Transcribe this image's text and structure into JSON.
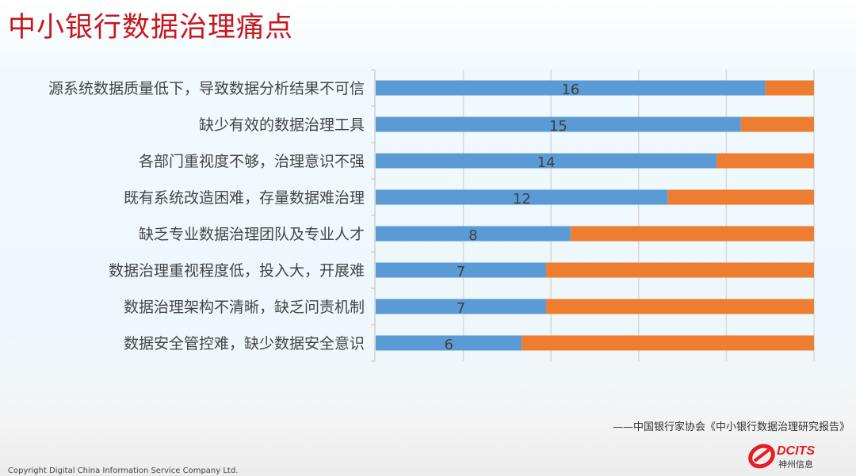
{
  "title": "中小银行数据治理痛点",
  "chart_data": {
    "type": "bar",
    "orientation": "horizontal",
    "stacked": true,
    "categories": [
      "源系统数据质量低下，导致数据分析结果不可信",
      "缺少有效的数据治理工具",
      "各部门重视度不够，治理意识不强",
      "既有系统改造困难，存量数据难治理",
      "缺乏专业数据治理团队及专业人才",
      "数据治理重视程度低，投入大，开展难",
      "数据治理架构不清晰，缺乏问责机制",
      "数据安全管控难，缺少数据安全意识"
    ],
    "series": [
      {
        "values": [
          16,
          15,
          14,
          12,
          8,
          7,
          7,
          6
        ],
        "color": "#5b9bd5"
      },
      {
        "values": [
          2,
          3,
          4,
          6,
          10,
          11,
          11,
          12
        ],
        "color": "#ed7d31"
      }
    ],
    "data_labels": [
      "16",
      "15",
      "14",
      "12",
      "8",
      "7",
      "7",
      "6"
    ],
    "xlim": [
      0,
      18
    ],
    "grid": true,
    "legend": "none"
  },
  "source": "——中国银行家协会《中小银行数据治理研究报告》",
  "copyright": "Copyright  Digital China Information Service Company Ltd.",
  "logo": {
    "text_en": "DCITS",
    "text_cn": "神州信息",
    "color": "#e41e26"
  }
}
